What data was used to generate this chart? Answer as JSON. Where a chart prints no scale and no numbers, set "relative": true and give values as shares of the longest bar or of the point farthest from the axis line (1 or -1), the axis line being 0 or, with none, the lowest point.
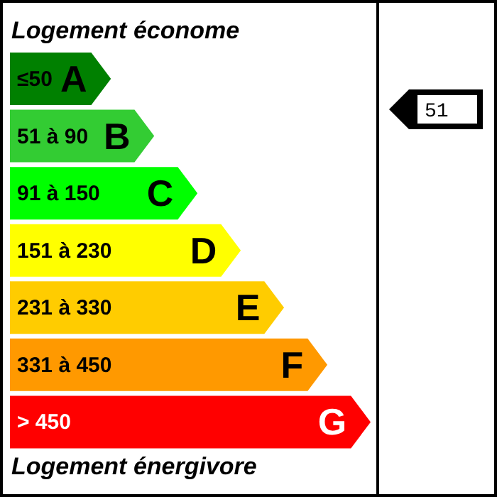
{
  "chart_data": {
    "type": "bar",
    "orientation": "horizontal",
    "relative": true,
    "title": "Logement économe",
    "xlabel": "Logement énergivore",
    "categories": [
      "≤50",
      "51 à 90",
      "91 à 150",
      "151 à 230",
      "231 à 330",
      "331 à 450",
      "> 450"
    ],
    "values": [
      0.28,
      0.4,
      0.52,
      0.64,
      0.76,
      0.88,
      1
    ],
    "colors": [
      "#008000",
      "#33cc33",
      "#00ff00",
      "#ffff00",
      "#ffcc00",
      "#ff9900",
      "#ff0000"
    ],
    "annotations": [
      "A",
      "B",
      "C",
      "D",
      "E",
      "F",
      "G",
      "51"
    ]
  }
}
